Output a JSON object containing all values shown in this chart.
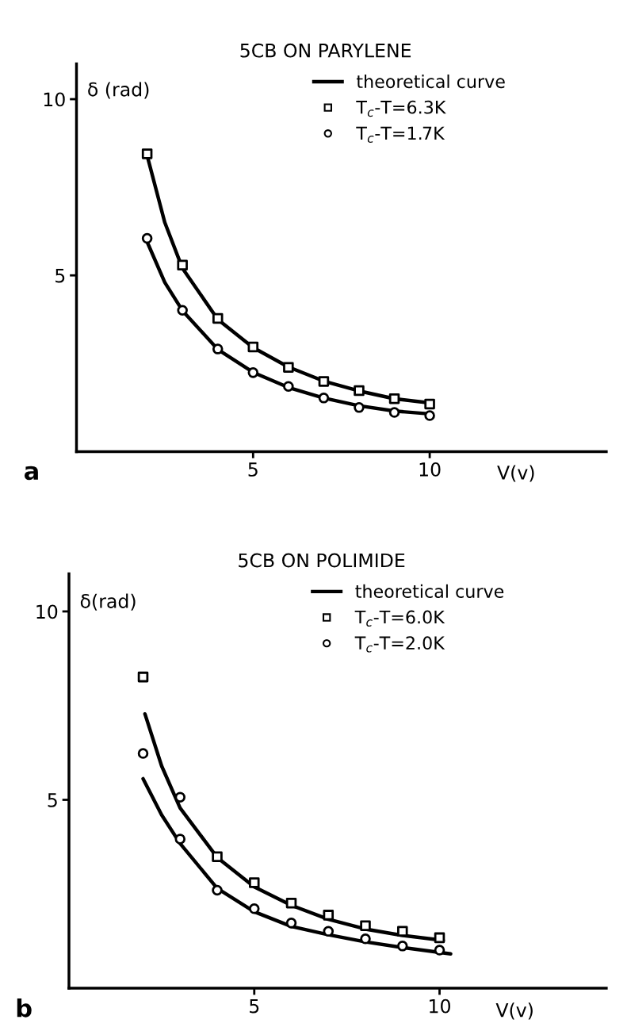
{
  "chart_data": [
    {
      "type": "scatter",
      "title": "5CB ON PARYLENE",
      "xlabel": "V(v)",
      "ylabel": "δ (rad)",
      "annotations": [
        "a"
      ],
      "xlim": [
        0,
        15
      ],
      "ylim": [
        0,
        11
      ],
      "xticks": [
        5,
        10
      ],
      "yticks": [
        5,
        10
      ],
      "grid": false,
      "legend": "top right",
      "series": [
        {
          "type": "line",
          "name": "theoretical curve",
          "color": "#000000",
          "marker": "none",
          "line_style": "solid",
          "x": [
            2,
            2.5,
            3,
            4,
            5,
            6,
            7,
            8,
            9,
            10
          ],
          "values": [
            8.4,
            6.5,
            5.2,
            3.75,
            2.95,
            2.4,
            2.0,
            1.72,
            1.5,
            1.38
          ]
        },
        {
          "type": "line",
          "color": "#000000",
          "marker": "none",
          "line_style": "solid",
          "x": [
            2,
            2.5,
            3,
            4,
            5,
            6,
            7,
            8,
            9,
            10
          ],
          "values": [
            5.95,
            4.8,
            4.0,
            2.9,
            2.25,
            1.82,
            1.52,
            1.3,
            1.15,
            1.07
          ]
        },
        {
          "name": "T$_{c}$-T=6.3K",
          "color": "#000000",
          "marker": "square",
          "x": [
            2,
            3,
            4,
            5,
            6,
            7,
            8,
            9,
            10
          ],
          "values": [
            8.45,
            5.29,
            3.78,
            2.97,
            2.39,
            1.99,
            1.73,
            1.5,
            1.35
          ]
        },
        {
          "name": "T$_{c}$-T=1.7K",
          "color": "#000000",
          "marker": "circle",
          "x": [
            2,
            3,
            4,
            5,
            6,
            7,
            8,
            9,
            10
          ],
          "values": [
            6.05,
            4.01,
            2.91,
            2.24,
            1.85,
            1.52,
            1.25,
            1.11,
            1.02
          ]
        }
      ]
    },
    {
      "type": "scatter",
      "title": "5CB ON POLIMIDE",
      "xlabel": "V(v)",
      "ylabel": "δ(rad)",
      "annotations": [
        "b"
      ],
      "xlim": [
        0,
        14.5
      ],
      "ylim": [
        0,
        11
      ],
      "xticks": [
        5,
        10
      ],
      "yticks": [
        5,
        10
      ],
      "grid": false,
      "legend": "top right",
      "series": [
        {
          "type": "line",
          "name": "theoretical curve",
          "color": "#000000",
          "marker": "none",
          "line_style": "solid",
          "x": [
            2.05,
            2.5,
            3,
            4,
            5,
            6,
            7,
            8,
            9,
            10.1
          ],
          "values": [
            7.28,
            5.9,
            4.78,
            3.47,
            2.69,
            2.2,
            1.83,
            1.57,
            1.4,
            1.27
          ]
        },
        {
          "type": "line",
          "color": "#000000",
          "marker": "none",
          "line_style": "solid",
          "x": [
            2,
            2.5,
            3,
            4,
            5,
            6,
            7,
            8,
            9,
            10.3
          ],
          "values": [
            5.56,
            4.6,
            3.84,
            2.65,
            2.03,
            1.64,
            1.42,
            1.23,
            1.08,
            0.91
          ]
        },
        {
          "name": "T$_{c}$-T=6.0K",
          "color": "#000000",
          "marker": "square",
          "x": [
            2,
            4,
            5,
            6,
            7,
            8,
            9,
            10
          ],
          "values": [
            8.26,
            3.49,
            2.8,
            2.26,
            1.94,
            1.66,
            1.51,
            1.34
          ]
        },
        {
          "name": "T$_{c}$-T=2.0K",
          "color": "#000000",
          "marker": "circle",
          "x": [
            2,
            3,
            3,
            4,
            5,
            6,
            7,
            8,
            9,
            10
          ],
          "values": [
            6.23,
            5.07,
            3.96,
            2.6,
            2.11,
            1.73,
            1.51,
            1.31,
            1.12,
            1.01
          ]
        }
      ]
    }
  ]
}
